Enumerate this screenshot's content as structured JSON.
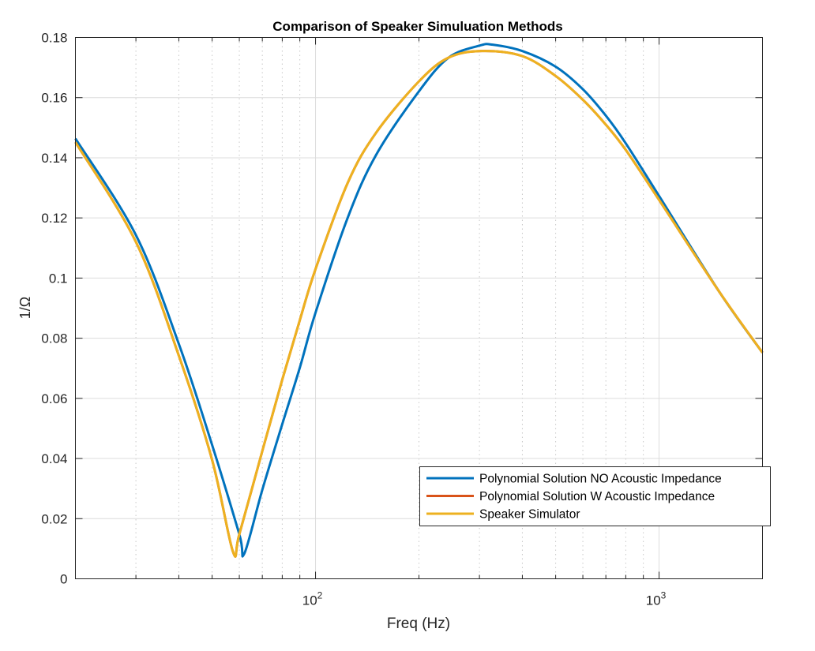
{
  "chart_data": {
    "type": "line",
    "title": "Comparison of Speaker Simuluation Methods",
    "xlabel": "Freq (Hz)",
    "ylabel": "1/Ω",
    "xscale": "log",
    "xlim": [
      20,
      2000
    ],
    "ylim": [
      0,
      0.18
    ],
    "grid": true,
    "legend_position": "bottom-right",
    "yticks": [
      0,
      0.02,
      0.04,
      0.06,
      0.08,
      0.1,
      0.12,
      0.14,
      0.16,
      0.18
    ],
    "ytick_labels": [
      "0",
      "0.02",
      "0.04",
      "0.06",
      "0.08",
      "0.1",
      "0.12",
      "0.14",
      "0.16",
      "0.18"
    ],
    "xticks": [
      100,
      1000
    ],
    "xtick_labels": [
      {
        "base": "10",
        "exp": "2"
      },
      {
        "base": "10",
        "exp": "3"
      }
    ],
    "series": [
      {
        "name": "Polynomial Solution NO Acoustic Impedance",
        "color": "#0072BD",
        "x": [
          20,
          30,
          40,
          50,
          60,
          62,
          70,
          80,
          90,
          100,
          124,
          150,
          200,
          244,
          300,
          328,
          400,
          500,
          600,
          700,
          800,
          1000,
          1500,
          2000
        ],
        "y": [
          0.1464,
          0.1143,
          0.0781,
          0.0445,
          0.0148,
          0.0083,
          0.0296,
          0.0514,
          0.0702,
          0.0885,
          0.12,
          0.1409,
          0.1621,
          0.1733,
          0.1773,
          0.1776,
          0.1755,
          0.1703,
          0.1628,
          0.154,
          0.1448,
          0.1273,
          0.0953,
          0.0752
        ]
      },
      {
        "name": "Polynomial Solution W Acoustic Impedance",
        "color": "#D95319",
        "x": [
          20,
          30,
          40,
          50,
          57.5,
          60,
          70,
          80,
          90,
          100,
          124,
          150,
          200,
          244,
          305,
          400,
          500,
          600,
          700,
          800,
          1000,
          1500,
          2000
        ],
        "y": [
          0.1452,
          0.112,
          0.0742,
          0.0395,
          0.009,
          0.0148,
          0.0425,
          0.0662,
          0.086,
          0.103,
          0.1316,
          0.1483,
          0.1654,
          0.1733,
          0.1755,
          0.1738,
          0.1672,
          0.1593,
          0.151,
          0.1426,
          0.126,
          0.0953,
          0.0752
        ]
      },
      {
        "name": "Speaker Simulator",
        "color": "#EDB120",
        "x": [
          20,
          30,
          40,
          50,
          57.5,
          60,
          70,
          80,
          90,
          100,
          124,
          150,
          200,
          244,
          305,
          400,
          500,
          600,
          700,
          800,
          1000,
          1500,
          2000
        ],
        "y": [
          0.1452,
          0.112,
          0.0742,
          0.0395,
          0.009,
          0.0148,
          0.0425,
          0.0662,
          0.086,
          0.103,
          0.1316,
          0.1483,
          0.1654,
          0.1733,
          0.1755,
          0.1738,
          0.1672,
          0.1593,
          0.151,
          0.1426,
          0.126,
          0.0953,
          0.0752
        ]
      }
    ]
  }
}
